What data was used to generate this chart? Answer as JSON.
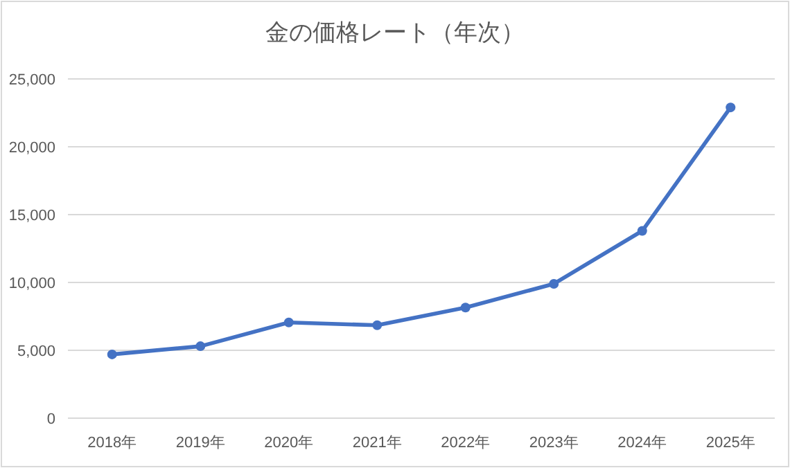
{
  "chart_data": {
    "type": "line",
    "title": "金の価格レート（年次）",
    "categories": [
      "2018年",
      "2019年",
      "2020年",
      "2021年",
      "2022年",
      "2023年",
      "2024年",
      "2025年"
    ],
    "series": [
      {
        "color": "#4472c4",
        "values": [
          4700,
          5300,
          7050,
          6850,
          8150,
          9900,
          13800,
          22900
        ]
      }
    ],
    "ylim": [
      0,
      25000
    ],
    "yticks": [
      {
        "value": 0,
        "label": "0"
      },
      {
        "value": 5000,
        "label": "5,000"
      },
      {
        "value": 10000,
        "label": "10,000"
      },
      {
        "value": 15000,
        "label": "15,000"
      },
      {
        "value": 20000,
        "label": "20,000"
      },
      {
        "value": 25000,
        "label": "25,000"
      }
    ],
    "grid": "y",
    "marker": "circle",
    "line_style": "solid"
  }
}
